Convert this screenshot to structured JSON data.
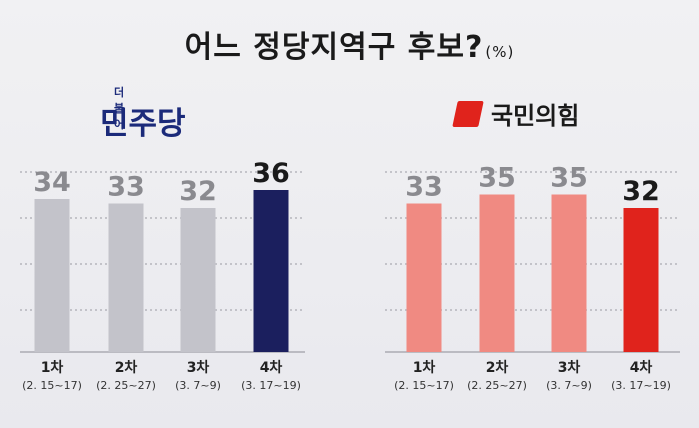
{
  "title": "어느 정당지역구 후보?",
  "title_unit": "(%)",
  "colors": {
    "dp_highlight": "#1b1f5e",
    "dp_other": "#c3c3ca",
    "ppp_highlight": "#e0231c",
    "ppp_other": "#f08a82",
    "label_gray": "#8a8a8f",
    "label_dark": "#1a1a1a"
  },
  "chart_data": [
    {
      "type": "bar",
      "party": "민주당",
      "party_top": "더불어",
      "categories": [
        "1차",
        "2차",
        "3차",
        "4차"
      ],
      "dates": [
        "(2. 15~17)",
        "(2. 25~27)",
        "(3. 7~9)",
        "(3. 17~19)"
      ],
      "values": [
        34,
        33,
        32,
        36
      ],
      "highlight_index": 3,
      "grid": true
    },
    {
      "type": "bar",
      "party": "국민의힘",
      "categories": [
        "1차",
        "2차",
        "3차",
        "4차"
      ],
      "dates": [
        "(2. 15~17)",
        "(2. 25~27)",
        "(3. 7~9)",
        "(3. 17~19)"
      ],
      "values": [
        33,
        35,
        35,
        32
      ],
      "highlight_index": 3,
      "grid": true
    }
  ]
}
